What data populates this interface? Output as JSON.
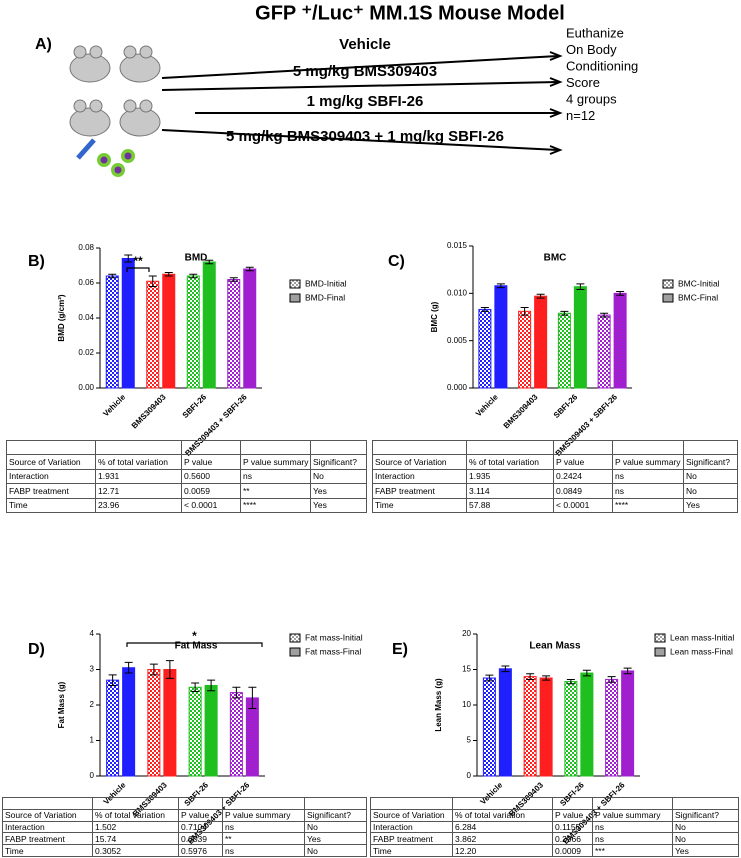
{
  "title": "GFP ⁺/Luc⁺ MM.1S Mouse Model",
  "panel_a": {
    "label": "A)",
    "arms": [
      "Vehicle",
      "5 mg/kg BMS309403",
      "1 mg/kg SBFI-26",
      "5 mg/kg BMS309403 + 1 mg/kg SBFI-26"
    ],
    "outcome": [
      "Euthanize",
      "On Body",
      "Conditioning",
      "Score",
      "4 groups",
      "n=12"
    ]
  },
  "chart_data": [
    {
      "type": "bar",
      "panel_label": "B)",
      "title": "BMD",
      "ylabel": "BMD (g/cm²)",
      "categories": [
        "Vehicle",
        "BMS309403",
        "SBFI-26",
        "BMS309403 + SBFI-26"
      ],
      "colors": [
        "#1f1fff",
        "#ff1f1f",
        "#1fbf1f",
        "#a020d0"
      ],
      "legend_color": "#a0a0a0",
      "ylim": [
        0,
        0.08
      ],
      "yticks": [
        {
          "value": 0,
          "label": "0.00"
        },
        0.02,
        0.04,
        0.06,
        0.08
      ],
      "series": [
        {
          "name": "BMD-Initial",
          "pattern": "checkered",
          "values": [
            0.064,
            0.061,
            0.064,
            0.062
          ],
          "errors": [
            0.001,
            0.003,
            0.001,
            0.001
          ]
        },
        {
          "name": "BMD-Final",
          "pattern": "solid",
          "values": [
            0.074,
            0.065,
            0.072,
            0.068
          ],
          "errors": [
            0.002,
            0.001,
            0.001,
            0.001
          ]
        }
      ],
      "annotation": "**"
    },
    {
      "type": "bar",
      "panel_label": "C)",
      "title": "BMC",
      "ylabel": "BMC (g)",
      "categories": [
        "Vehicle",
        "BMS309403",
        "SBFI-26",
        "BMS309403 + SBFI-26"
      ],
      "colors": [
        "#1f1fff",
        "#ff1f1f",
        "#1fbf1f",
        "#a020d0"
      ],
      "legend_color": "#a0a0a0",
      "ylim": [
        0,
        0.015
      ],
      "yticks": [
        {
          "value": 0,
          "label": "0.000"
        },
        0.005,
        {
          "value": 0.01,
          "label": "0.010"
        },
        0.015
      ],
      "series": [
        {
          "name": "BMC-Initial",
          "pattern": "checkered",
          "values": [
            0.0083,
            0.0081,
            0.0079,
            0.0077
          ],
          "errors": [
            0.0002,
            0.0004,
            0.0002,
            0.0002
          ]
        },
        {
          "name": "BMC-Final",
          "pattern": "solid",
          "values": [
            0.0108,
            0.0097,
            0.0107,
            0.01
          ],
          "errors": [
            0.0002,
            0.0002,
            0.0003,
            0.0002
          ]
        }
      ]
    },
    {
      "type": "bar",
      "panel_label": "D)",
      "title": "Fat Mass",
      "ylabel": "Fat Mass (g)",
      "categories": [
        "Vehicle",
        "BMS309403",
        "SBFI-26",
        "BMS309403 + SBFI-26"
      ],
      "colors": [
        "#1f1fff",
        "#ff1f1f",
        "#1fbf1f",
        "#a020d0"
      ],
      "legend_color": "#a0a0a0",
      "ylim": [
        0,
        4
      ],
      "yticks": [
        0,
        1,
        2,
        3,
        4
      ],
      "series": [
        {
          "name": "Fat mass-Initial",
          "pattern": "checkered",
          "values": [
            2.7,
            3.0,
            2.5,
            2.35
          ],
          "errors": [
            0.15,
            0.15,
            0.12,
            0.15
          ]
        },
        {
          "name": "Fat mass-Final",
          "pattern": "solid",
          "values": [
            3.05,
            3.0,
            2.55,
            2.2
          ],
          "errors": [
            0.15,
            0.25,
            0.15,
            0.3
          ]
        }
      ],
      "annotation": "*"
    },
    {
      "type": "bar",
      "panel_label": "E)",
      "title": "Lean Mass",
      "ylabel": "Lean Mass (g)",
      "categories": [
        "Vehicle",
        "BMS309403",
        "SBFI-26",
        "BMS309403 + SBFI-26"
      ],
      "colors": [
        "#1f1fff",
        "#ff1f1f",
        "#1fbf1f",
        "#a020d0"
      ],
      "legend_color": "#a0a0a0",
      "ylim": [
        0,
        20
      ],
      "yticks": [
        0,
        5,
        10,
        15,
        20
      ],
      "series": [
        {
          "name": "Lean mass-Initial",
          "pattern": "checkered",
          "values": [
            13.8,
            14.0,
            13.3,
            13.6
          ],
          "errors": [
            0.4,
            0.4,
            0.3,
            0.4
          ]
        },
        {
          "name": "Lean mass-Final",
          "pattern": "solid",
          "values": [
            15.1,
            13.8,
            14.5,
            14.8
          ],
          "errors": [
            0.4,
            0.3,
            0.4,
            0.4
          ]
        }
      ]
    }
  ],
  "tables": [
    {
      "columns": [
        "Source of Variation",
        "% of total variation",
        "P value",
        "P value summary",
        "Significant?"
      ],
      "rows": [
        [
          "Interaction",
          "1.931",
          "0.5600",
          "ns",
          "No"
        ],
        [
          "FABP treatment",
          "12.71",
          "0.0059",
          "**",
          "Yes"
        ],
        [
          "Time",
          "23.96",
          "< 0.0001",
          "****",
          "Yes"
        ]
      ]
    },
    {
      "columns": [
        "Source of Variation",
        "% of total variation",
        "P value",
        "P value summary",
        "Significant?"
      ],
      "rows": [
        [
          "Interaction",
          "1.935",
          "0.2424",
          "ns",
          "No"
        ],
        [
          "FABP treatment",
          "3.114",
          "0.0849",
          "ns",
          "No"
        ],
        [
          "Time",
          "57.88",
          "< 0.0001",
          "****",
          "Yes"
        ]
      ]
    },
    {
      "columns": [
        "Source of Variation",
        "% of total variation",
        "P value",
        "P value summary",
        "Significant?"
      ],
      "rows": [
        [
          "Interaction",
          "1.502",
          "0.7104",
          "ns",
          "No"
        ],
        [
          "FABP treatment",
          "15.74",
          "0.0039",
          "**",
          "Yes"
        ],
        [
          "Time",
          "0.3052",
          "0.5976",
          "ns",
          "No"
        ]
      ]
    },
    {
      "columns": [
        "Source of Variation",
        "% of total variation",
        "P value",
        "P value summary",
        "Significant?"
      ],
      "rows": [
        [
          "Interaction",
          "6.284",
          "0.1155",
          "ns",
          "No"
        ],
        [
          "FABP treatment",
          "3.862",
          "0.2966",
          "ns",
          "No"
        ],
        [
          "Time",
          "12.20",
          "0.0009",
          "***",
          "Yes"
        ]
      ]
    }
  ]
}
